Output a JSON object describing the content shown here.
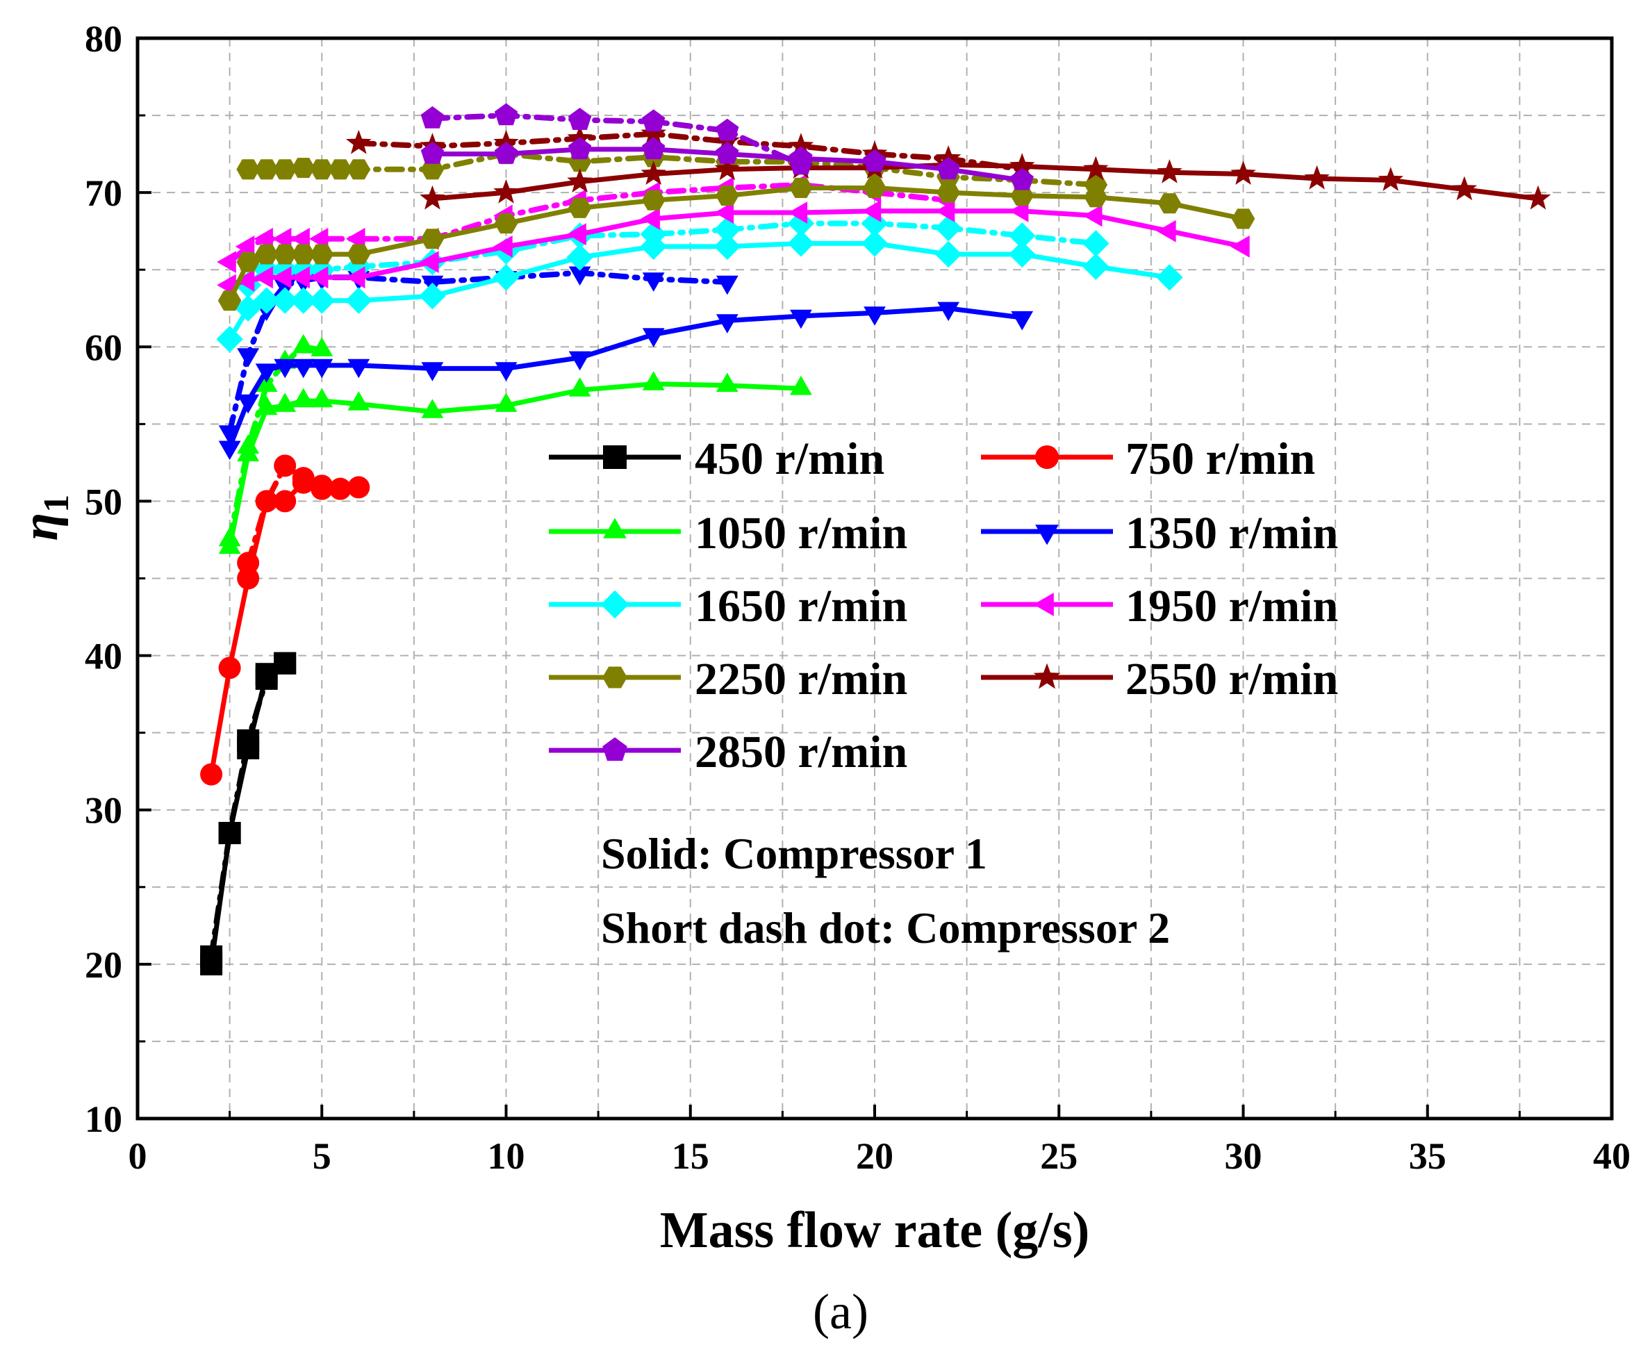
{
  "chart_data": {
    "type": "line",
    "title": "",
    "caption": "(a)",
    "xlabel": "Mass flow rate (g/s)",
    "ylabel_symbol": "η",
    "ylabel_subscript": "1",
    "xlim": [
      0,
      40
    ],
    "ylim": [
      10,
      80
    ],
    "xticks": [
      0,
      5,
      10,
      15,
      20,
      25,
      30,
      35,
      40
    ],
    "yticks": [
      10,
      20,
      30,
      40,
      50,
      60,
      70,
      80
    ],
    "xtick_labels": [
      "0",
      "5",
      "10",
      "15",
      "20",
      "25",
      "30",
      "35",
      "40"
    ],
    "ytick_labels": [
      "10",
      "20",
      "30",
      "40",
      "50",
      "60",
      "70",
      "80"
    ],
    "grid": true,
    "legend_placement": "center",
    "annotations": [
      "Solid: Compressor 1",
      "Short dash dot: Compressor 2"
    ],
    "series": [
      {
        "name": "450 r/min",
        "color": "#000000",
        "marker": "square",
        "style": "solid",
        "x": [
          2.0,
          2.5,
          3.0,
          3.5,
          4.0
        ],
        "y": [
          20.0,
          28.5,
          34.0,
          38.8,
          39.5
        ]
      },
      {
        "name": "450 r/min",
        "color": "#000000",
        "marker": "square",
        "style": "dashdot",
        "x": [
          2.0,
          2.5,
          3.0,
          3.5,
          4.0
        ],
        "y": [
          20.5,
          28.5,
          34.5,
          38.5,
          39.5
        ]
      },
      {
        "name": "750 r/min",
        "color": "#ff0000",
        "marker": "circle",
        "style": "solid",
        "x": [
          2.0,
          2.5,
          3.0,
          3.5,
          4.0,
          4.5,
          5.0,
          5.5,
          6.0
        ],
        "y": [
          32.3,
          39.2,
          45.0,
          50.0,
          50.0,
          51.2,
          50.8,
          50.8,
          50.9
        ]
      },
      {
        "name": "750 r/min",
        "color": "#ff0000",
        "marker": "circle",
        "style": "dashdot",
        "x": [
          3.0,
          3.5,
          4.0,
          4.5,
          5.0
        ],
        "y": [
          46.0,
          50.0,
          52.3,
          51.5,
          51.0
        ]
      },
      {
        "name": "1050 r/min",
        "color": "#00ff00",
        "marker": "triangle-up",
        "style": "solid",
        "x": [
          2.5,
          3.0,
          3.5,
          4.0,
          4.5,
          5.0,
          6.0,
          8.0,
          10.0,
          12.0,
          14.0,
          16.0,
          18.0
        ],
        "y": [
          47.0,
          53.0,
          56.0,
          56.2,
          56.5,
          56.5,
          56.3,
          55.8,
          56.2,
          57.2,
          57.6,
          57.5,
          57.3
        ]
      },
      {
        "name": "1050 r/min",
        "color": "#00ff00",
        "marker": "triangle-up",
        "style": "dashdot",
        "x": [
          2.5,
          3.0,
          3.5,
          4.0,
          4.5,
          5.0
        ],
        "y": [
          47.5,
          53.5,
          57.5,
          59.0,
          60.0,
          59.8
        ]
      },
      {
        "name": "1350 r/min",
        "color": "#0000ff",
        "marker": "triangle-down",
        "style": "solid",
        "x": [
          2.5,
          3.0,
          3.5,
          4.0,
          4.5,
          5.0,
          6.0,
          8.0,
          10.0,
          12.0,
          14.0,
          16.0,
          18.0,
          20.0,
          22.0,
          24.0
        ],
        "y": [
          53.5,
          56.5,
          58.5,
          58.8,
          58.8,
          58.8,
          58.8,
          58.6,
          58.6,
          59.3,
          60.8,
          61.7,
          62.0,
          62.2,
          62.5,
          61.9
        ]
      },
      {
        "name": "1350 r/min",
        "color": "#0000ff",
        "marker": "triangle-down",
        "style": "dashdot",
        "x": [
          2.5,
          3.0,
          3.5,
          4.0,
          4.5,
          5.0,
          6.0,
          8.0,
          10.0,
          12.0,
          14.0,
          16.0
        ],
        "y": [
          54.5,
          59.5,
          62.5,
          64.0,
          64.3,
          64.5,
          64.5,
          64.2,
          64.5,
          64.8,
          64.4,
          64.2
        ]
      },
      {
        "name": "1650 r/min",
        "color": "#00ffff",
        "marker": "diamond",
        "style": "solid",
        "x": [
          2.5,
          3.0,
          3.5,
          4.0,
          4.5,
          5.0,
          6.0,
          8.0,
          10.0,
          12.0,
          14.0,
          16.0,
          18.0,
          20.0,
          22.0,
          24.0,
          26.0,
          28.0
        ],
        "y": [
          60.5,
          62.5,
          63.0,
          63.0,
          63.0,
          63.0,
          63.0,
          63.3,
          64.5,
          65.8,
          66.5,
          66.5,
          66.7,
          66.7,
          66.0,
          66.0,
          65.2,
          64.5
        ]
      },
      {
        "name": "1650 r/min",
        "color": "#00ffff",
        "marker": "diamond",
        "style": "dashdot",
        "x": [
          3.0,
          3.5,
          4.0,
          4.5,
          5.0,
          6.0,
          8.0,
          10.0,
          12.0,
          14.0,
          16.0,
          18.0,
          20.0,
          22.0,
          24.0,
          26.0
        ],
        "y": [
          64.0,
          65.0,
          65.0,
          65.0,
          65.0,
          65.2,
          65.5,
          66.2,
          67.2,
          67.3,
          67.6,
          68.0,
          68.0,
          67.7,
          67.2,
          66.7
        ]
      },
      {
        "name": "1950 r/min",
        "color": "#ff00ff",
        "marker": "triangle-left",
        "style": "solid",
        "x": [
          2.5,
          3.0,
          3.5,
          4.0,
          4.5,
          5.0,
          6.0,
          8.0,
          10.0,
          12.0,
          14.0,
          16.0,
          18.0,
          20.0,
          22.0,
          24.0,
          26.0,
          28.0,
          30.0
        ],
        "y": [
          64.0,
          64.3,
          64.5,
          64.5,
          64.5,
          64.5,
          64.5,
          65.5,
          66.5,
          67.3,
          68.3,
          68.7,
          68.7,
          68.8,
          68.8,
          68.8,
          68.5,
          67.5,
          66.5
        ]
      },
      {
        "name": "1950 r/min",
        "color": "#ff00ff",
        "marker": "triangle-left",
        "style": "dashdot",
        "x": [
          2.5,
          3.0,
          3.5,
          4.0,
          4.5,
          5.0,
          6.0,
          8.0,
          10.0,
          12.0,
          14.0,
          16.0,
          18.0,
          20.0,
          22.0
        ],
        "y": [
          65.5,
          66.5,
          67.0,
          67.0,
          67.0,
          67.0,
          67.0,
          67.0,
          68.5,
          69.5,
          70.0,
          70.3,
          70.5,
          70.0,
          69.5
        ]
      },
      {
        "name": "2250 r/min",
        "color": "#808000",
        "marker": "hexagon",
        "style": "solid",
        "x": [
          2.5,
          3.0,
          3.5,
          4.0,
          4.5,
          5.0,
          6.0,
          8.0,
          10.0,
          12.0,
          14.0,
          16.0,
          18.0,
          20.0,
          22.0,
          24.0,
          26.0,
          28.0,
          30.0
        ],
        "y": [
          63.0,
          65.5,
          66.0,
          66.0,
          66.0,
          66.0,
          66.0,
          67.0,
          68.0,
          69.0,
          69.5,
          69.8,
          70.3,
          70.3,
          70.0,
          69.8,
          69.7,
          69.3,
          68.3
        ]
      },
      {
        "name": "2250 r/min",
        "color": "#808000",
        "marker": "hexagon",
        "style": "dashdot",
        "x": [
          3.0,
          3.5,
          4.0,
          4.5,
          5.0,
          5.5,
          6.0,
          8.0,
          10.0,
          12.0,
          14.0,
          16.0,
          18.0,
          20.0,
          22.0,
          24.0,
          26.0
        ],
        "y": [
          71.5,
          71.5,
          71.5,
          71.6,
          71.5,
          71.5,
          71.5,
          71.5,
          72.5,
          72.0,
          72.3,
          72.0,
          72.0,
          71.6,
          71.0,
          70.8,
          70.5
        ]
      },
      {
        "name": "2550 r/min",
        "color": "#8b0000",
        "marker": "star",
        "style": "solid",
        "x": [
          8.0,
          10.0,
          12.0,
          14.0,
          16.0,
          18.0,
          20.0,
          22.0,
          24.0,
          26.0,
          28.0,
          30.0,
          32.0,
          34.0,
          36.0,
          38.0
        ],
        "y": [
          69.6,
          70.0,
          70.7,
          71.2,
          71.5,
          71.6,
          71.6,
          71.8,
          71.7,
          71.5,
          71.3,
          71.2,
          70.9,
          70.8,
          70.2,
          69.6
        ]
      },
      {
        "name": "2550 r/min",
        "color": "#8b0000",
        "marker": "star",
        "style": "dashdot",
        "x": [
          6.0,
          8.0,
          10.0,
          12.0,
          14.0,
          16.0,
          18.0,
          20.0,
          22.0,
          24.0
        ],
        "y": [
          73.2,
          73.0,
          73.2,
          73.5,
          73.8,
          73.3,
          73.0,
          72.5,
          72.2,
          71.5
        ]
      },
      {
        "name": "2850 r/min",
        "color": "#9400d3",
        "marker": "pentagon",
        "style": "solid",
        "x": [
          8.0,
          10.0,
          12.0,
          14.0,
          16.0,
          18.0,
          20.0,
          22.0,
          24.0
        ],
        "y": [
          72.5,
          72.5,
          72.8,
          72.8,
          72.5,
          72.2,
          72.0,
          71.5,
          70.8
        ]
      },
      {
        "name": "2850 r/min",
        "color": "#9400d3",
        "marker": "pentagon",
        "style": "dashdot",
        "x": [
          8.0,
          10.0,
          12.0,
          14.0,
          16.0,
          18.0
        ],
        "y": [
          74.8,
          75.0,
          74.7,
          74.6,
          74.0,
          71.8
        ]
      }
    ],
    "legend": [
      {
        "name": "450 r/min",
        "color": "#000000",
        "marker": "square"
      },
      {
        "name": "750 r/min",
        "color": "#ff0000",
        "marker": "circle"
      },
      {
        "name": "1050 r/min",
        "color": "#00ff00",
        "marker": "triangle-up"
      },
      {
        "name": "1350 r/min",
        "color": "#0000ff",
        "marker": "triangle-down"
      },
      {
        "name": "1650 r/min",
        "color": "#00ffff",
        "marker": "diamond"
      },
      {
        "name": "1950 r/min",
        "color": "#ff00ff",
        "marker": "triangle-left"
      },
      {
        "name": "2250 r/min",
        "color": "#808000",
        "marker": "hexagon"
      },
      {
        "name": "2550 r/min",
        "color": "#8b0000",
        "marker": "star"
      },
      {
        "name": "2850 r/min",
        "color": "#9400d3",
        "marker": "pentagon"
      }
    ]
  }
}
